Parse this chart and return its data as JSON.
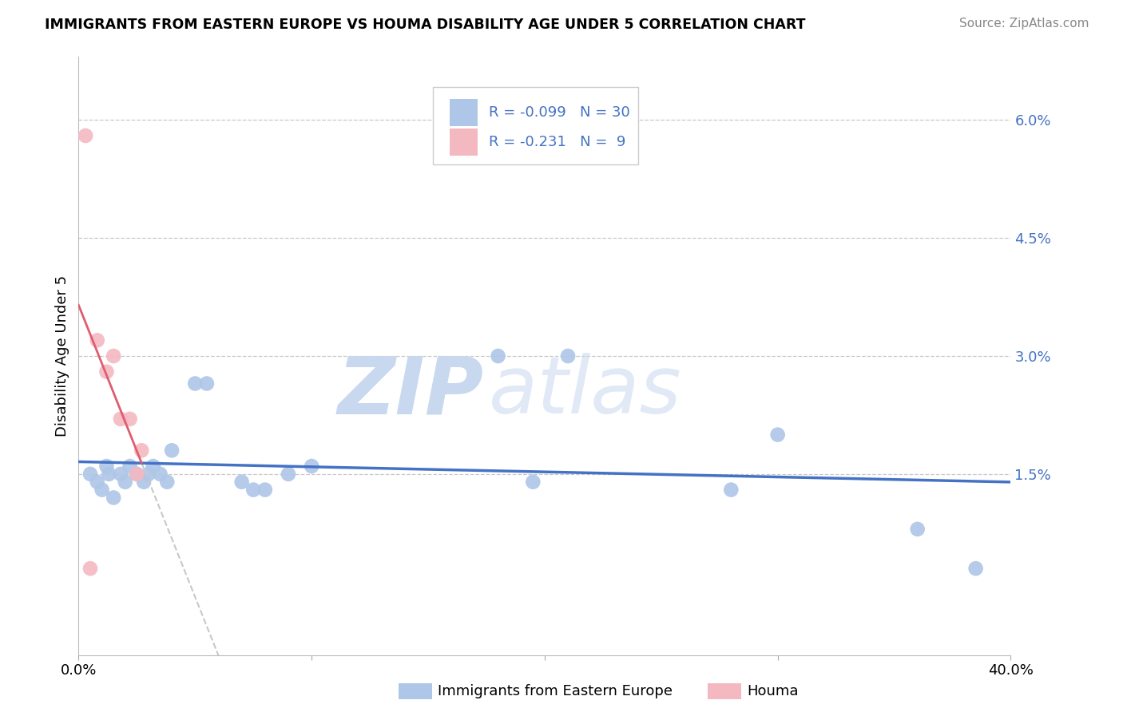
{
  "title": "IMMIGRANTS FROM EASTERN EUROPE VS HOUMA DISABILITY AGE UNDER 5 CORRELATION CHART",
  "source": "Source: ZipAtlas.com",
  "ylabel": "Disability Age Under 5",
  "legend_label1": "Immigrants from Eastern Europe",
  "legend_label2": "Houma",
  "r1": "-0.099",
  "n1": "30",
  "r2": "-0.231",
  "n2": "9",
  "xlim": [
    0.0,
    0.4
  ],
  "ylim": [
    -0.008,
    0.068
  ],
  "blue_scatter_x": [
    0.005,
    0.008,
    0.01,
    0.012,
    0.013,
    0.015,
    0.018,
    0.02,
    0.022,
    0.025,
    0.028,
    0.03,
    0.032,
    0.035,
    0.038,
    0.04,
    0.05,
    0.055,
    0.07,
    0.075,
    0.08,
    0.09,
    0.1,
    0.18,
    0.195,
    0.21,
    0.28,
    0.3,
    0.36,
    0.385
  ],
  "blue_scatter_y": [
    0.015,
    0.014,
    0.013,
    0.016,
    0.015,
    0.012,
    0.015,
    0.014,
    0.016,
    0.015,
    0.014,
    0.015,
    0.016,
    0.015,
    0.014,
    0.018,
    0.0265,
    0.0265,
    0.014,
    0.013,
    0.013,
    0.015,
    0.016,
    0.03,
    0.014,
    0.03,
    0.013,
    0.02,
    0.008,
    0.003
  ],
  "pink_scatter_x": [
    0.003,
    0.005,
    0.008,
    0.012,
    0.015,
    0.018,
    0.022,
    0.025,
    0.027
  ],
  "pink_scatter_y": [
    0.058,
    0.003,
    0.032,
    0.028,
    0.03,
    0.022,
    0.022,
    0.015,
    0.018
  ],
  "blue_color": "#aec6e8",
  "pink_color": "#f4b8c1",
  "blue_line_color": "#4472c4",
  "pink_line_color": "#e05c6e",
  "grid_color": "#c8c8c8",
  "watermark_zip_color": "#c8d8ee",
  "watermark_atlas_color": "#c8d8ee",
  "bg_color": "#ffffff",
  "ytick_vals": [
    0.015,
    0.03,
    0.045,
    0.06
  ],
  "ytick_labels": [
    "1.5%",
    "3.0%",
    "4.5%",
    "6.0%"
  ]
}
